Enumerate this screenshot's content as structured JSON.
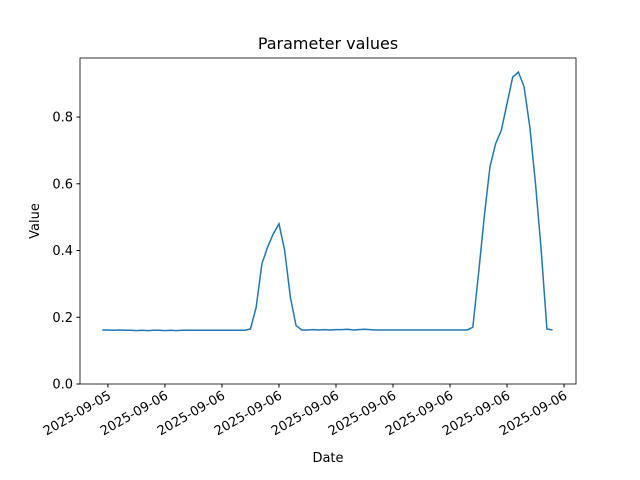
{
  "chart_data": {
    "type": "line",
    "title": "Parameter values",
    "xlabel": "Date",
    "ylabel": "Value",
    "x": [
      -1,
      0,
      1,
      2,
      3,
      4,
      5,
      6,
      7,
      8,
      9,
      10,
      11,
      12,
      13,
      14,
      15,
      16,
      17,
      18,
      19,
      20,
      21,
      22,
      23,
      24,
      25,
      26,
      27,
      28,
      29,
      30,
      31,
      32,
      33,
      34,
      35,
      36,
      37,
      38,
      39,
      40,
      41,
      42,
      43,
      44,
      45,
      46,
      47,
      48,
      49,
      50,
      51,
      52,
      53,
      54,
      55,
      56,
      57,
      58,
      59,
      60,
      61,
      62,
      63,
      64,
      65,
      66,
      67,
      68,
      69,
      70,
      71,
      72,
      73,
      74,
      75,
      76,
      77,
      78
    ],
    "series": [
      {
        "name": "Value",
        "color": "#1f77b4",
        "values": [
          0.162,
          0.162,
          0.161,
          0.162,
          0.161,
          0.161,
          0.16,
          0.161,
          0.16,
          0.161,
          0.161,
          0.16,
          0.161,
          0.16,
          0.161,
          0.161,
          0.161,
          0.161,
          0.161,
          0.161,
          0.161,
          0.161,
          0.161,
          0.161,
          0.161,
          0.161,
          0.165,
          0.23,
          0.36,
          0.41,
          0.45,
          0.48,
          0.4,
          0.26,
          0.175,
          0.162,
          0.162,
          0.163,
          0.162,
          0.163,
          0.162,
          0.163,
          0.163,
          0.164,
          0.162,
          0.163,
          0.164,
          0.163,
          0.162,
          0.162,
          0.162,
          0.162,
          0.162,
          0.162,
          0.162,
          0.162,
          0.162,
          0.162,
          0.162,
          0.162,
          0.162,
          0.162,
          0.162,
          0.162,
          0.162,
          0.17,
          0.33,
          0.5,
          0.65,
          0.72,
          0.76,
          0.84,
          0.92,
          0.935,
          0.89,
          0.77,
          0.6,
          0.4,
          0.165,
          0.162
        ]
      }
    ],
    "xlim": [
      -4.9,
      82.1
    ],
    "xticks": [
      {
        "value": 0,
        "label": "2025-09-05"
      },
      {
        "value": 10,
        "label": "2025-09-06"
      },
      {
        "value": 20,
        "label": "2025-09-06"
      },
      {
        "value": 30,
        "label": "2025-09-06"
      },
      {
        "value": 40,
        "label": "2025-09-06"
      },
      {
        "value": 50,
        "label": "2025-09-06"
      },
      {
        "value": 60,
        "label": "2025-09-06"
      },
      {
        "value": 70,
        "label": "2025-09-06"
      },
      {
        "value": 80,
        "label": "2025-09-06"
      }
    ],
    "ylim": [
      0,
      0.977
    ],
    "yticks": [
      {
        "value": 0,
        "label": "0.0"
      },
      0.2,
      0.4,
      0.6,
      0.8
    ]
  }
}
